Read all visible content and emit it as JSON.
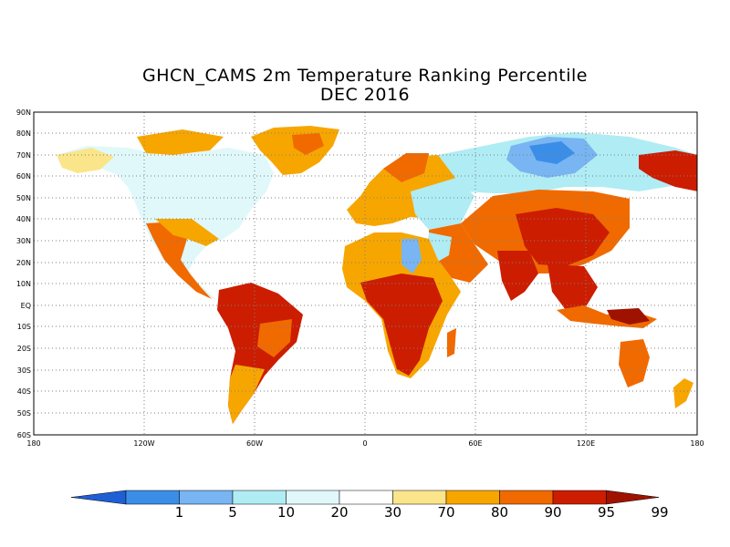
{
  "title": "GHCN_CAMS 2m Temperature Ranking Percentile",
  "subtitle": "DEC 2016",
  "axes": {
    "lat_ticks": [
      "90N",
      "80N",
      "70N",
      "60N",
      "50N",
      "40N",
      "30N",
      "20N",
      "10N",
      "EQ",
      "10S",
      "20S",
      "30S",
      "40S",
      "50S",
      "60S"
    ],
    "lon_ticks": [
      "180",
      "120W",
      "60W",
      "0",
      "60E",
      "120E",
      "180"
    ]
  },
  "colorbar": {
    "labels": [
      "1",
      "5",
      "10",
      "20",
      "30",
      "70",
      "80",
      "90",
      "95",
      "99"
    ],
    "colors": [
      "#1f5fd6",
      "#3b8ee8",
      "#78b5f2",
      "#b0ecf4",
      "#e0f8fa",
      "#ffffff",
      "#fbe58a",
      "#f7a600",
      "#f06a00",
      "#cc1d00",
      "#a01200"
    ]
  },
  "legend_levels": {
    "below_1": "#1f5fd6",
    "1_5": "#3b8ee8",
    "5_10": "#78b5f2",
    "10_20": "#b0ecf4",
    "20_30": "#e0f8fa",
    "30_70": "#ffffff",
    "70_80": "#fbe58a",
    "80_90": "#f7a600",
    "90_95": "#f06a00",
    "95_99": "#cc1d00",
    "above_99": "#a01200"
  }
}
